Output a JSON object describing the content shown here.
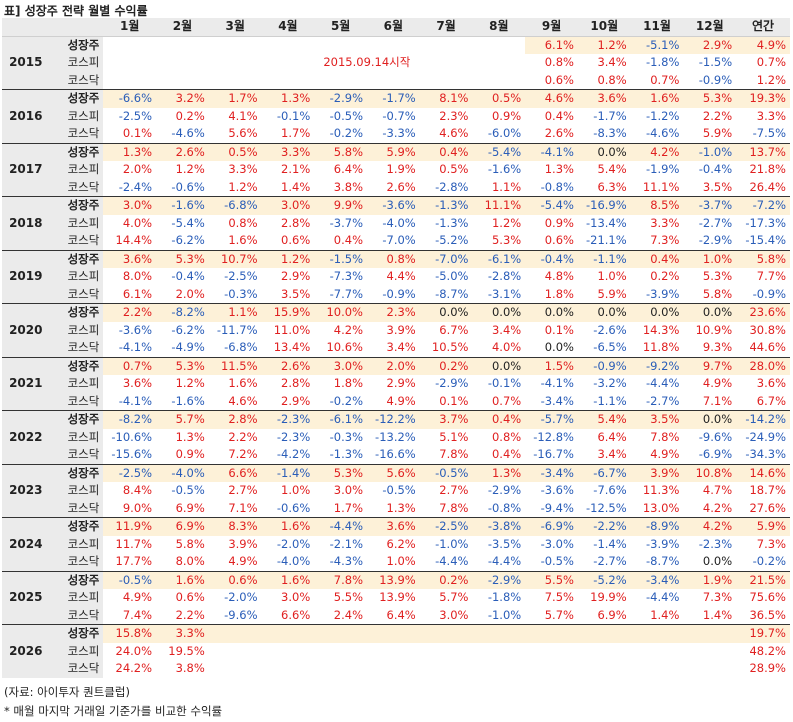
{
  "title": "표] 성장주 전략 월별 수익률",
  "headers": [
    "1월",
    "2월",
    "3월",
    "4월",
    "5월",
    "6월",
    "7월",
    "8월",
    "9월",
    "10월",
    "11월",
    "12월",
    "연간"
  ],
  "series_labels": [
    "성장주",
    "코스피",
    "코스닥"
  ],
  "note_2015": "2015.09.14시작",
  "years": [
    {
      "year": "2015",
      "rows": [
        [
          "",
          "",
          "",
          "",
          "",
          "",
          "",
          "",
          "6.1%",
          "1.2%",
          "-5.1%",
          "2.9%",
          "4.9%"
        ],
        [
          "",
          "",
          "",
          "",
          "",
          "",
          "",
          "",
          "0.8%",
          "3.4%",
          "-1.8%",
          "-1.5%",
          "0.7%"
        ],
        [
          "",
          "",
          "",
          "",
          "",
          "",
          "",
          "",
          "0.6%",
          "0.8%",
          "0.7%",
          "-0.9%",
          "1.2%"
        ]
      ]
    },
    {
      "year": "2016",
      "rows": [
        [
          "-6.6%",
          "3.2%",
          "1.7%",
          "1.3%",
          "-2.9%",
          "-1.7%",
          "8.1%",
          "0.5%",
          "4.6%",
          "3.6%",
          "1.6%",
          "5.3%",
          "19.3%"
        ],
        [
          "-2.5%",
          "0.2%",
          "4.1%",
          "-0.1%",
          "-0.5%",
          "-0.7%",
          "2.3%",
          "0.9%",
          "0.4%",
          "-1.7%",
          "-1.2%",
          "2.2%",
          "3.3%"
        ],
        [
          "0.1%",
          "-4.6%",
          "5.6%",
          "1.7%",
          "-0.2%",
          "-3.3%",
          "4.6%",
          "-6.0%",
          "2.6%",
          "-8.3%",
          "-4.6%",
          "5.9%",
          "-7.5%"
        ]
      ]
    },
    {
      "year": "2017",
      "rows": [
        [
          "1.3%",
          "2.6%",
          "0.5%",
          "3.3%",
          "5.8%",
          "5.9%",
          "0.4%",
          "-5.4%",
          "-4.1%",
          "0.0%",
          "4.2%",
          "-1.0%",
          "13.7%"
        ],
        [
          "2.0%",
          "1.2%",
          "3.3%",
          "2.1%",
          "6.4%",
          "1.9%",
          "0.5%",
          "-1.6%",
          "1.3%",
          "5.4%",
          "-1.9%",
          "-0.4%",
          "21.8%"
        ],
        [
          "-2.4%",
          "-0.6%",
          "1.2%",
          "1.4%",
          "3.8%",
          "2.6%",
          "-2.8%",
          "1.1%",
          "-0.8%",
          "6.3%",
          "11.1%",
          "3.5%",
          "26.4%"
        ]
      ]
    },
    {
      "year": "2018",
      "rows": [
        [
          "3.0%",
          "-1.6%",
          "-6.8%",
          "3.0%",
          "9.9%",
          "-3.6%",
          "-1.3%",
          "11.1%",
          "-5.4%",
          "-16.9%",
          "8.5%",
          "-3.7%",
          "-7.2%"
        ],
        [
          "4.0%",
          "-5.4%",
          "0.8%",
          "2.8%",
          "-3.7%",
          "-4.0%",
          "-1.3%",
          "1.2%",
          "0.9%",
          "-13.4%",
          "3.3%",
          "-2.7%",
          "-17.3%"
        ],
        [
          "14.4%",
          "-6.2%",
          "1.6%",
          "0.6%",
          "0.4%",
          "-7.0%",
          "-5.2%",
          "5.3%",
          "0.6%",
          "-21.1%",
          "7.3%",
          "-2.9%",
          "-15.4%"
        ]
      ]
    },
    {
      "year": "2019",
      "rows": [
        [
          "3.6%",
          "5.3%",
          "10.7%",
          "1.2%",
          "-1.5%",
          "0.8%",
          "-7.0%",
          "-6.1%",
          "-0.4%",
          "-1.1%",
          "0.4%",
          "1.0%",
          "5.8%"
        ],
        [
          "8.0%",
          "-0.4%",
          "-2.5%",
          "2.9%",
          "-7.3%",
          "4.4%",
          "-5.0%",
          "-2.8%",
          "4.8%",
          "1.0%",
          "0.2%",
          "5.3%",
          "7.7%"
        ],
        [
          "6.1%",
          "2.0%",
          "-0.3%",
          "3.5%",
          "-7.7%",
          "-0.9%",
          "-8.7%",
          "-3.1%",
          "1.8%",
          "5.9%",
          "-3.9%",
          "5.8%",
          "-0.9%"
        ]
      ]
    },
    {
      "year": "2020",
      "rows": [
        [
          "2.2%",
          "-8.2%",
          "1.1%",
          "15.9%",
          "10.0%",
          "2.3%",
          "0.0%",
          "0.0%",
          "0.0%",
          "0.0%",
          "0.0%",
          "0.0%",
          "23.6%"
        ],
        [
          "-3.6%",
          "-6.2%",
          "-11.7%",
          "11.0%",
          "4.2%",
          "3.9%",
          "6.7%",
          "3.4%",
          "0.1%",
          "-2.6%",
          "14.3%",
          "10.9%",
          "30.8%"
        ],
        [
          "-4.1%",
          "-4.9%",
          "-6.8%",
          "13.4%",
          "10.6%",
          "3.4%",
          "10.5%",
          "4.0%",
          "0.0%",
          "-6.5%",
          "11.8%",
          "9.3%",
          "44.6%"
        ]
      ]
    },
    {
      "year": "2021",
      "rows": [
        [
          "0.7%",
          "5.3%",
          "11.5%",
          "2.6%",
          "3.0%",
          "2.0%",
          "0.2%",
          "0.0%",
          "1.5%",
          "-0.9%",
          "-9.2%",
          "9.7%",
          "28.0%"
        ],
        [
          "3.6%",
          "1.2%",
          "1.6%",
          "2.8%",
          "1.8%",
          "2.9%",
          "-2.9%",
          "-0.1%",
          "-4.1%",
          "-3.2%",
          "-4.4%",
          "4.9%",
          "3.6%"
        ],
        [
          "-4.1%",
          "-1.6%",
          "4.6%",
          "2.9%",
          "-0.2%",
          "4.9%",
          "0.1%",
          "0.7%",
          "-3.4%",
          "-1.1%",
          "-2.7%",
          "7.1%",
          "6.7%"
        ]
      ]
    },
    {
      "year": "2022",
      "rows": [
        [
          "-8.2%",
          "5.7%",
          "2.8%",
          "-2.3%",
          "-6.1%",
          "-12.2%",
          "3.7%",
          "0.4%",
          "-5.7%",
          "5.4%",
          "3.5%",
          "0.0%",
          "-14.2%"
        ],
        [
          "-10.6%",
          "1.3%",
          "2.2%",
          "-2.3%",
          "-0.3%",
          "-13.2%",
          "5.1%",
          "0.8%",
          "-12.8%",
          "6.4%",
          "7.8%",
          "-9.6%",
          "-24.9%"
        ],
        [
          "-15.6%",
          "0.9%",
          "7.2%",
          "-4.2%",
          "-1.3%",
          "-16.6%",
          "7.8%",
          "0.4%",
          "-16.7%",
          "3.4%",
          "4.9%",
          "-6.9%",
          "-34.3%"
        ]
      ]
    },
    {
      "year": "2023",
      "rows": [
        [
          "-2.5%",
          "-4.0%",
          "6.6%",
          "-1.4%",
          "5.3%",
          "5.6%",
          "-0.5%",
          "1.3%",
          "-3.4%",
          "-6.7%",
          "3.9%",
          "10.8%",
          "14.6%"
        ],
        [
          "8.4%",
          "-0.5%",
          "2.7%",
          "1.0%",
          "3.0%",
          "-0.5%",
          "2.7%",
          "-2.9%",
          "-3.6%",
          "-7.6%",
          "11.3%",
          "4.7%",
          "18.7%"
        ],
        [
          "9.0%",
          "6.9%",
          "7.1%",
          "-0.6%",
          "1.7%",
          "1.3%",
          "7.8%",
          "-0.8%",
          "-9.4%",
          "-12.5%",
          "13.0%",
          "4.2%",
          "27.6%"
        ]
      ]
    },
    {
      "year": "2024",
      "rows": [
        [
          "11.9%",
          "6.9%",
          "8.3%",
          "1.6%",
          "-4.4%",
          "3.6%",
          "-2.5%",
          "-3.8%",
          "-6.9%",
          "-2.2%",
          "-8.9%",
          "4.2%",
          "5.9%"
        ],
        [
          "11.7%",
          "5.8%",
          "3.9%",
          "-2.0%",
          "-2.1%",
          "6.2%",
          "-1.0%",
          "-3.5%",
          "-3.0%",
          "-1.4%",
          "-3.9%",
          "-2.3%",
          "7.3%"
        ],
        [
          "17.7%",
          "8.0%",
          "4.9%",
          "-4.0%",
          "-4.3%",
          "1.0%",
          "-4.4%",
          "-4.4%",
          "-0.5%",
          "-2.7%",
          "-8.7%",
          "0.0%",
          "-0.2%"
        ]
      ]
    },
    {
      "year": "2025",
      "rows": [
        [
          "-0.5%",
          "1.6%",
          "0.6%",
          "1.6%",
          "7.8%",
          "13.9%",
          "0.2%",
          "-2.9%",
          "5.5%",
          "-5.2%",
          "-3.4%",
          "1.9%",
          "21.5%"
        ],
        [
          "4.9%",
          "0.6%",
          "-2.0%",
          "3.0%",
          "5.5%",
          "13.9%",
          "5.7%",
          "-1.8%",
          "7.5%",
          "19.9%",
          "-4.4%",
          "7.3%",
          "75.6%"
        ],
        [
          "7.4%",
          "2.2%",
          "-9.6%",
          "6.6%",
          "2.4%",
          "6.4%",
          "3.0%",
          "-1.0%",
          "5.7%",
          "6.9%",
          "1.4%",
          "1.4%",
          "36.5%"
        ]
      ]
    },
    {
      "year": "2026",
      "rows": [
        [
          "15.8%",
          "3.3%",
          "",
          "",
          "",
          "",
          "",
          "",
          "",
          "",
          "",
          "",
          "19.7%"
        ],
        [
          "24.0%",
          "19.5%",
          "",
          "",
          "",
          "",
          "",
          "",
          "",
          "",
          "",
          "",
          "48.2%"
        ],
        [
          "24.2%",
          "3.8%",
          "",
          "",
          "",
          "",
          "",
          "",
          "",
          "",
          "",
          "",
          "28.9%"
        ]
      ]
    }
  ],
  "footnotes": [
    "(자료: 아이투자 퀀트클럽)",
    "* 매월 마지막 거래일 기준가를 비교한 수익률"
  ]
}
